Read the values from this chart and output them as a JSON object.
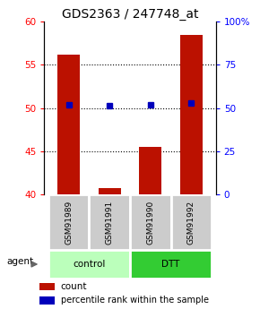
{
  "title": "GDS2363 / 247748_at",
  "samples": [
    "GSM91989",
    "GSM91991",
    "GSM91990",
    "GSM91992"
  ],
  "bar_values": [
    56.2,
    40.8,
    45.5,
    58.5
  ],
  "bar_base": 40.0,
  "percentile_values": [
    52.0,
    51.5,
    51.8,
    53.0
  ],
  "ylim_left": [
    40,
    60
  ],
  "ylim_right": [
    0,
    100
  ],
  "yticks_left": [
    40,
    45,
    50,
    55,
    60
  ],
  "yticks_right": [
    0,
    25,
    50,
    75,
    100
  ],
  "ytick_labels_right": [
    "0",
    "25",
    "50",
    "75",
    "100%"
  ],
  "bar_color": "#bb1100",
  "percentile_color": "#0000bb",
  "control_color": "#bbffbb",
  "dtt_color": "#33cc33",
  "sample_box_color": "#cccccc",
  "agent_label": "agent",
  "legend_count_label": "count",
  "legend_pct_label": "percentile rank within the sample",
  "title_fontsize": 10,
  "tick_fontsize": 7.5,
  "label_fontsize": 7.5
}
